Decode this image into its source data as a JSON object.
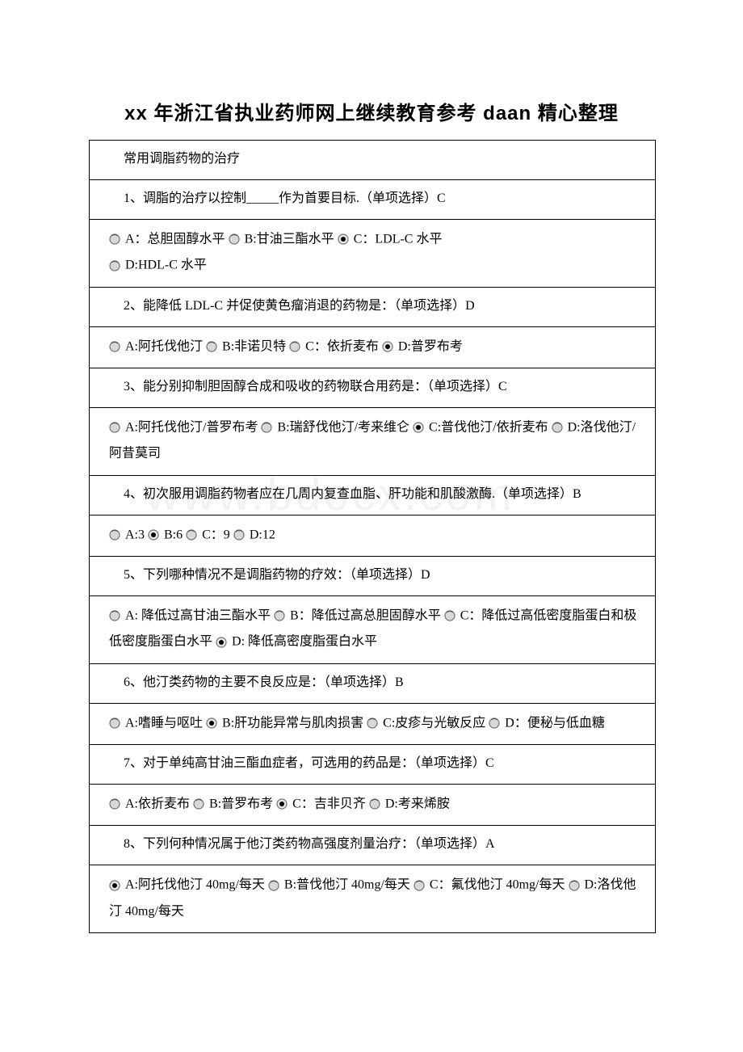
{
  "title": "xx 年浙江省执业药师网上继续教育参考 daan 精心整理",
  "section_header": "常用调脂药物的治疗",
  "watermark": "www.bdocx.com",
  "watermark_color": "#f2f2f2",
  "radio_unchecked_colors": {
    "outer": "#808080",
    "inner_shadow": "#606060",
    "highlight": "#e8e8e8"
  },
  "radio_checked_colors": {
    "outer": "#808080",
    "dot": "#000000"
  },
  "questions": [
    {
      "text": "1、调脂的治疗以控制_____作为首要目标.（单项选择）C",
      "options": [
        {
          "label": "A：总胆固醇水平",
          "checked": false
        },
        {
          "label": "B:甘油三酯水平",
          "checked": false
        },
        {
          "label": "C：LDL-C 水平",
          "checked": true
        },
        {
          "label": "D:HDL-C 水平",
          "checked": false
        }
      ]
    },
    {
      "text": "2、能降低 LDL-C 并促使黄色瘤消退的药物是：（单项选择）D",
      "options": [
        {
          "label": "A:阿托伐他汀",
          "checked": false
        },
        {
          "label": "B:非诺贝特",
          "checked": false
        },
        {
          "label": "C：依折麦布",
          "checked": false
        },
        {
          "label": "D:普罗布考",
          "checked": true
        }
      ]
    },
    {
      "text": "3、能分别抑制胆固醇合成和吸收的药物联合用药是：（单项选择）C",
      "options": [
        {
          "label": "A:阿托伐他汀/普罗布考",
          "checked": false
        },
        {
          "label": "B:瑞舒伐他汀/考来维仑",
          "checked": false
        },
        {
          "label": "C:普伐他汀/依折麦布",
          "checked": true
        },
        {
          "label": "D:洛伐他汀/阿昔莫司",
          "checked": false
        }
      ]
    },
    {
      "text": "4、初次服用调脂药物者应在几周内复查血脂、肝功能和肌酸激酶.（单项选择）B",
      "options": [
        {
          "label": "A:3",
          "checked": false
        },
        {
          "label": "B:6",
          "checked": true
        },
        {
          "label": "C：9",
          "checked": false
        },
        {
          "label": "D:12",
          "checked": false
        }
      ]
    },
    {
      "text": "5、下列哪种情况不是调脂药物的疗效：（单项选择）D",
      "options": [
        {
          "label": "A: 降低过高甘油三酯水平",
          "checked": false
        },
        {
          "label": "B：降低过高总胆固醇水平",
          "checked": false
        },
        {
          "label": "C：降低过高低密度脂蛋白和极低密度脂蛋白水平",
          "checked": false
        },
        {
          "label": "D: 降低高密度脂蛋白水平",
          "checked": true
        }
      ]
    },
    {
      "text": "6、他汀类药物的主要不良反应是：（单项选择）B",
      "options": [
        {
          "label": "A:嗜睡与呕吐",
          "checked": false
        },
        {
          "label": "B:肝功能异常与肌肉损害",
          "checked": true
        },
        {
          "label": "C:皮疹与光敏反应",
          "checked": false
        },
        {
          "label": "D：便秘与低血糖",
          "checked": false
        }
      ]
    },
    {
      "text": "7、对于单纯高甘油三酯血症者，可选用的药品是：（单项选择）C",
      "options": [
        {
          "label": "A:依折麦布",
          "checked": false
        },
        {
          "label": "B:普罗布考",
          "checked": false
        },
        {
          "label": "C：吉非贝齐",
          "checked": true
        },
        {
          "label": "D:考来烯胺",
          "checked": false
        }
      ]
    },
    {
      "text": "8、下列何种情况属于他汀类药物高强度剂量治疗：（单项选择）A",
      "options": [
        {
          "label": "A:阿托伐他汀 40mg/每天",
          "checked": true
        },
        {
          "label": "B:普伐他汀 40mg/每天",
          "checked": false
        },
        {
          "label": "C：氟伐他汀 40mg/每天",
          "checked": false
        },
        {
          "label": "D:洛伐他汀 40mg/每天",
          "checked": false
        }
      ]
    }
  ]
}
